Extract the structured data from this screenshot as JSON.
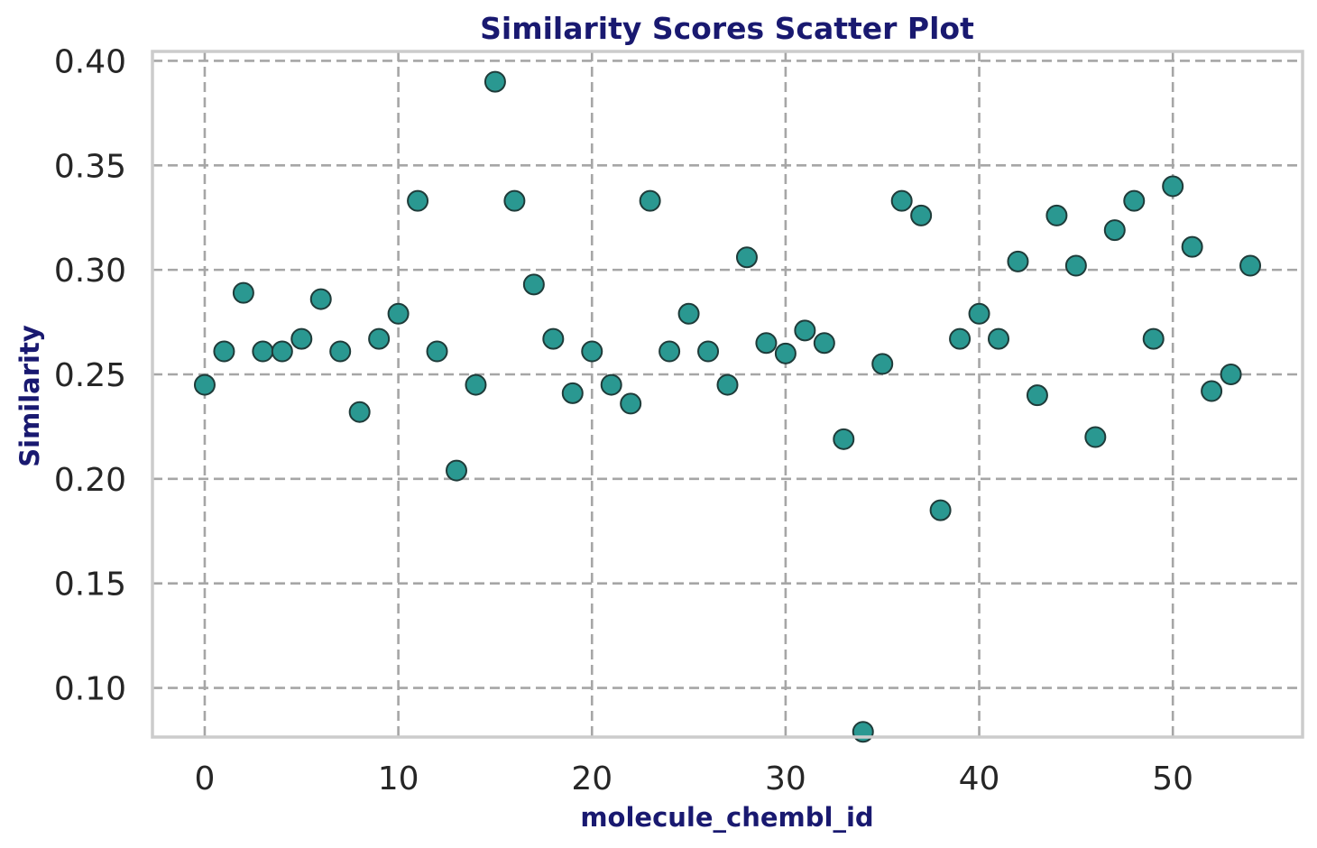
{
  "chart_data": {
    "type": "scatter",
    "title": "Similarity Scores Scatter Plot",
    "xlabel": "molecule_chembl_id",
    "ylabel": "Similarity",
    "xlim": [
      -2.7,
      56.7
    ],
    "ylim": [
      0.0765,
      0.4045
    ],
    "xticks": [
      0,
      10,
      20,
      30,
      40,
      50
    ],
    "yticks": [
      0.1,
      0.15,
      0.2,
      0.25,
      0.3,
      0.35,
      0.4
    ],
    "xtick_labels": [
      "0",
      "10",
      "20",
      "30",
      "40",
      "50"
    ],
    "ytick_labels": [
      "0.10",
      "0.15",
      "0.20",
      "0.25",
      "0.30",
      "0.35",
      "0.40"
    ],
    "grid": true,
    "grid_style": "dashed",
    "marker_color": "#2a9891",
    "marker_edge_color": "#1f3b39",
    "title_color": "#191970",
    "label_color": "#191970",
    "x": [
      0,
      1,
      2,
      3,
      4,
      5,
      6,
      7,
      8,
      9,
      10,
      11,
      12,
      13,
      14,
      15,
      16,
      17,
      18,
      19,
      20,
      21,
      22,
      23,
      24,
      25,
      26,
      27,
      28,
      29,
      30,
      31,
      32,
      33,
      34,
      35,
      36,
      37,
      38,
      39,
      40,
      41,
      42,
      43,
      44,
      45,
      46,
      47,
      48,
      49,
      50,
      51,
      52,
      53,
      54
    ],
    "y": [
      0.245,
      0.261,
      0.289,
      0.261,
      0.261,
      0.267,
      0.286,
      0.261,
      0.232,
      0.267,
      0.279,
      0.333,
      0.261,
      0.204,
      0.245,
      0.39,
      0.333,
      0.293,
      0.267,
      0.241,
      0.261,
      0.245,
      0.236,
      0.333,
      0.261,
      0.279,
      0.261,
      0.245,
      0.306,
      0.265,
      0.26,
      0.271,
      0.265,
      0.219,
      0.079,
      0.255,
      0.333,
      0.326,
      0.185,
      0.267,
      0.279,
      0.267,
      0.304,
      0.24,
      0.326,
      0.302,
      0.22,
      0.319,
      0.333,
      0.267,
      0.34,
      0.311,
      0.242,
      0.25,
      0.302
    ]
  }
}
